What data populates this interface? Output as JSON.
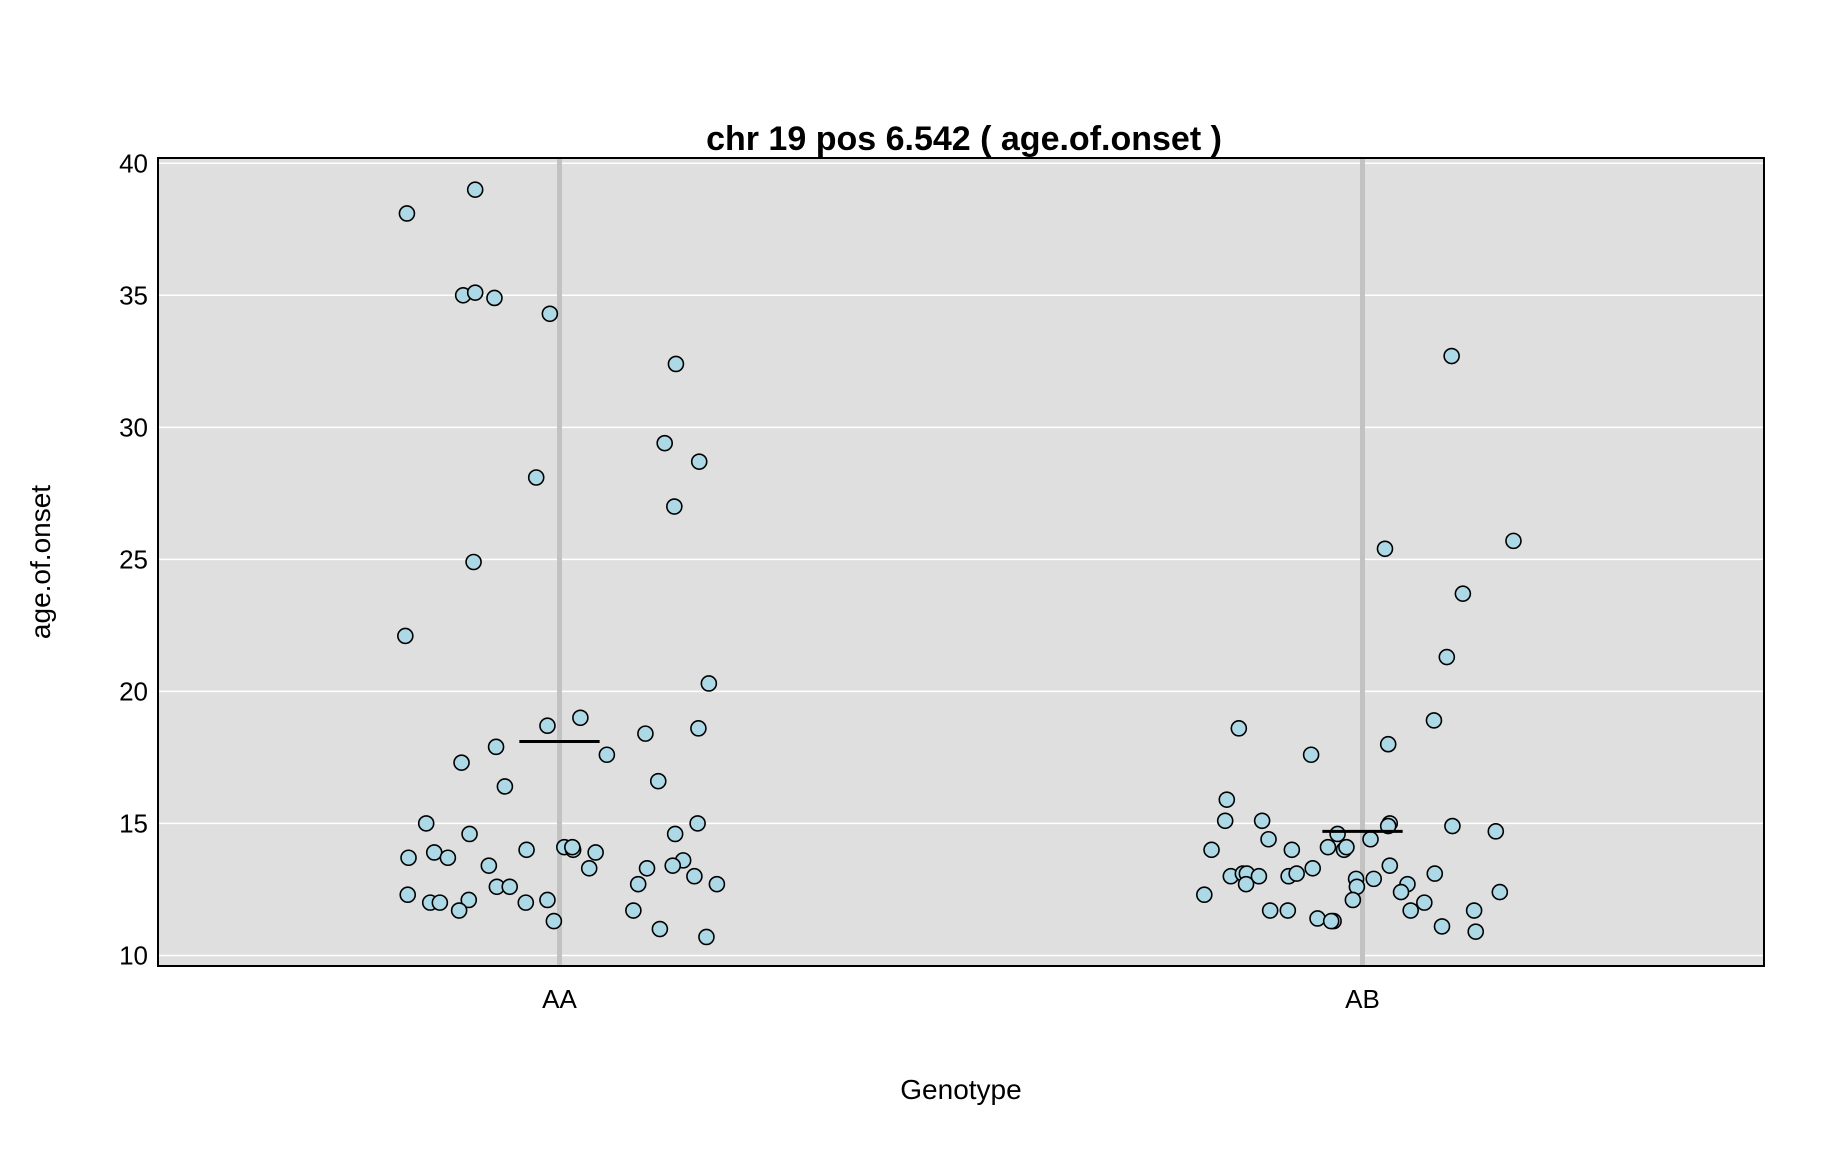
{
  "chart_data": {
    "type": "scatter",
    "title": "chr 19 pos 6.542 ( age.of.onset )",
    "xlabel": "Genotype",
    "ylabel": "age.of.onset",
    "categories": [
      "AA",
      "AB"
    ],
    "ylim": [
      9.6,
      40.2
    ],
    "yticks": [
      "10",
      "15",
      "20",
      "25",
      "30",
      "35",
      "40"
    ],
    "grid": true,
    "background_color": "#dfdfdf",
    "point_fill": "#add8e6",
    "point_stroke": "#000000",
    "series": [
      {
        "category": "AA",
        "mean": 18.1,
        "points": [
          {
            "x": -0.19,
            "y": 38.1
          },
          {
            "x": -0.105,
            "y": 39.0
          },
          {
            "x": -0.12,
            "y": 35.0
          },
          {
            "x": -0.105,
            "y": 35.1
          },
          {
            "x": -0.081,
            "y": 34.9
          },
          {
            "x": -0.012,
            "y": 34.3
          },
          {
            "x": 0.145,
            "y": 32.4
          },
          {
            "x": 0.131,
            "y": 29.4
          },
          {
            "x": 0.174,
            "y": 28.7
          },
          {
            "x": -0.029,
            "y": 28.1
          },
          {
            "x": 0.143,
            "y": 27.0
          },
          {
            "x": -0.107,
            "y": 24.9
          },
          {
            "x": -0.192,
            "y": 22.1
          },
          {
            "x": 0.186,
            "y": 20.3
          },
          {
            "x": -0.015,
            "y": 18.7
          },
          {
            "x": 0.026,
            "y": 19.0
          },
          {
            "x": 0.107,
            "y": 18.4
          },
          {
            "x": 0.173,
            "y": 18.6
          },
          {
            "x": -0.079,
            "y": 17.9
          },
          {
            "x": -0.122,
            "y": 17.3
          },
          {
            "x": 0.059,
            "y": 17.6
          },
          {
            "x": 0.123,
            "y": 16.6
          },
          {
            "x": -0.068,
            "y": 16.4
          },
          {
            "x": -0.166,
            "y": 15.0
          },
          {
            "x": -0.112,
            "y": 14.6
          },
          {
            "x": 0.172,
            "y": 15.0
          },
          {
            "x": 0.144,
            "y": 14.6
          },
          {
            "x": -0.188,
            "y": 13.7
          },
          {
            "x": -0.156,
            "y": 13.9
          },
          {
            "x": -0.139,
            "y": 13.7
          },
          {
            "x": -0.041,
            "y": 14.0
          },
          {
            "x": 0.006,
            "y": 14.1
          },
          {
            "x": 0.017,
            "y": 14.0
          },
          {
            "x": 0.045,
            "y": 13.9
          },
          {
            "x": 0.154,
            "y": 13.6
          },
          {
            "x": -0.088,
            "y": 13.4
          },
          {
            "x": 0.037,
            "y": 13.3
          },
          {
            "x": 0.109,
            "y": 13.3
          },
          {
            "x": 0.141,
            "y": 13.4
          },
          {
            "x": -0.078,
            "y": 12.6
          },
          {
            "x": -0.062,
            "y": 12.6
          },
          {
            "x": 0.098,
            "y": 12.7
          },
          {
            "x": 0.168,
            "y": 13.0
          },
          {
            "x": 0.196,
            "y": 12.7
          },
          {
            "x": -0.189,
            "y": 12.3
          },
          {
            "x": -0.161,
            "y": 12.0
          },
          {
            "x": -0.149,
            "y": 12.0
          },
          {
            "x": -0.113,
            "y": 12.1
          },
          {
            "x": -0.042,
            "y": 12.0
          },
          {
            "x": -0.015,
            "y": 12.1
          },
          {
            "x": -0.125,
            "y": 11.7
          },
          {
            "x": -0.007,
            "y": 11.3
          },
          {
            "x": 0.092,
            "y": 11.7
          },
          {
            "x": 0.125,
            "y": 11.0
          },
          {
            "x": 0.183,
            "y": 10.7
          },
          {
            "x": 0.016,
            "y": 14.1
          }
        ]
      },
      {
        "category": "AB",
        "mean": 14.7,
        "points": [
          {
            "x": 0.111,
            "y": 32.7
          },
          {
            "x": 0.188,
            "y": 25.7
          },
          {
            "x": 0.028,
            "y": 25.4
          },
          {
            "x": 0.125,
            "y": 23.7
          },
          {
            "x": 0.105,
            "y": 21.3
          },
          {
            "x": 0.089,
            "y": 18.9
          },
          {
            "x": -0.154,
            "y": 18.6
          },
          {
            "x": 0.032,
            "y": 18.0
          },
          {
            "x": -0.064,
            "y": 17.6
          },
          {
            "x": -0.169,
            "y": 15.9
          },
          {
            "x": -0.171,
            "y": 15.1
          },
          {
            "x": -0.125,
            "y": 15.1
          },
          {
            "x": 0.034,
            "y": 15.0
          },
          {
            "x": 0.032,
            "y": 14.9
          },
          {
            "x": 0.112,
            "y": 14.9
          },
          {
            "x": 0.166,
            "y": 14.7
          },
          {
            "x": -0.031,
            "y": 14.6
          },
          {
            "x": 0.01,
            "y": 14.4
          },
          {
            "x": -0.117,
            "y": 14.4
          },
          {
            "x": -0.188,
            "y": 14.0
          },
          {
            "x": -0.088,
            "y": 14.0
          },
          {
            "x": -0.043,
            "y": 14.1
          },
          {
            "x": -0.023,
            "y": 14.0
          },
          {
            "x": -0.02,
            "y": 14.1
          },
          {
            "x": -0.164,
            "y": 13.0
          },
          {
            "x": -0.149,
            "y": 13.1
          },
          {
            "x": -0.144,
            "y": 13.1
          },
          {
            "x": -0.129,
            "y": 13.0
          },
          {
            "x": -0.092,
            "y": 13.0
          },
          {
            "x": -0.082,
            "y": 13.1
          },
          {
            "x": -0.062,
            "y": 13.3
          },
          {
            "x": 0.034,
            "y": 13.4
          },
          {
            "x": 0.09,
            "y": 13.1
          },
          {
            "x": -0.145,
            "y": 12.7
          },
          {
            "x": -0.008,
            "y": 12.9
          },
          {
            "x": 0.014,
            "y": 12.9
          },
          {
            "x": 0.056,
            "y": 12.7
          },
          {
            "x": -0.197,
            "y": 12.3
          },
          {
            "x": -0.007,
            "y": 12.6
          },
          {
            "x": 0.048,
            "y": 12.4
          },
          {
            "x": 0.171,
            "y": 12.4
          },
          {
            "x": -0.012,
            "y": 12.1
          },
          {
            "x": 0.077,
            "y": 12.0
          },
          {
            "x": -0.115,
            "y": 11.7
          },
          {
            "x": -0.093,
            "y": 11.7
          },
          {
            "x": 0.06,
            "y": 11.7
          },
          {
            "x": 0.139,
            "y": 11.7
          },
          {
            "x": -0.056,
            "y": 11.4
          },
          {
            "x": -0.036,
            "y": 11.3
          },
          {
            "x": -0.039,
            "y": 11.3
          },
          {
            "x": 0.099,
            "y": 11.1
          },
          {
            "x": 0.141,
            "y": 10.9
          }
        ]
      }
    ]
  }
}
